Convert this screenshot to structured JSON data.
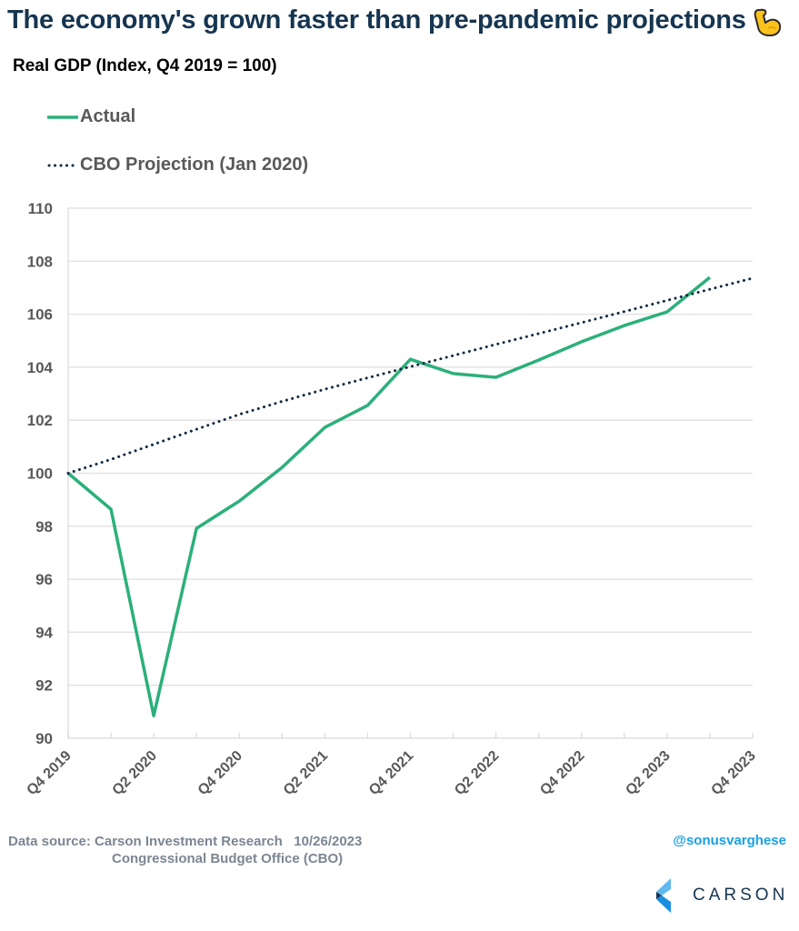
{
  "header": {
    "title": "The economy's grown faster than pre-pandemic projections",
    "title_emoji": "flexed-biceps",
    "subtitle": "Real GDP (Index, Q4 2019 = 100)"
  },
  "legend": [
    {
      "label": "Actual",
      "style": "solid",
      "color": "#2bb07a"
    },
    {
      "label": "CBO Projection (Jan 2020)",
      "style": "dotted",
      "color": "#102a43"
    }
  ],
  "chart_data": {
    "type": "line",
    "title": "The economy's grown faster than pre-pandemic projections",
    "subtitle": "Real GDP (Index, Q4 2019 = 100)",
    "xlabel": "",
    "ylabel": "",
    "ylim": [
      90,
      110
    ],
    "yticks": [
      110,
      108,
      106,
      104,
      102,
      100,
      98,
      96,
      94,
      92,
      90
    ],
    "x": [
      "Q4 2019",
      "Q1 2020",
      "Q2 2020",
      "Q3 2020",
      "Q4 2020",
      "Q1 2021",
      "Q2 2021",
      "Q3 2021",
      "Q4 2021",
      "Q1 2022",
      "Q2 2022",
      "Q3 2022",
      "Q4 2022",
      "Q1 2023",
      "Q2 2023",
      "Q3 2023",
      "Q4 2023"
    ],
    "xtick_labels": [
      "Q4 2019",
      "Q2 2020",
      "Q4 2020",
      "Q2 2021",
      "Q4 2021",
      "Q2 2022",
      "Q4 2022",
      "Q2 2023",
      "Q4 2023"
    ],
    "grid": true,
    "legend_position": "top-left",
    "series": [
      {
        "name": "Actual",
        "color": "#2bb07a",
        "style": "solid",
        "values": [
          100.0,
          98.64,
          90.85,
          97.92,
          98.95,
          100.22,
          101.73,
          102.56,
          104.3,
          103.76,
          103.62,
          104.27,
          104.96,
          105.57,
          106.09,
          107.39,
          null
        ]
      },
      {
        "name": "CBO Projection (Jan 2020)",
        "color": "#102a43",
        "style": "dotted",
        "values": [
          100.0,
          100.52,
          101.09,
          101.66,
          102.22,
          102.71,
          103.17,
          103.6,
          104.02,
          104.44,
          104.86,
          105.27,
          105.68,
          106.1,
          106.52,
          106.94,
          107.36
        ]
      }
    ]
  },
  "footer": {
    "source_line1": "Data source: Carson Investment Research   10/26/2023",
    "source_line2": "Congressional Budget Office (CBO)",
    "handle": "@sonusvarghese",
    "logo_text": "CARSON"
  }
}
